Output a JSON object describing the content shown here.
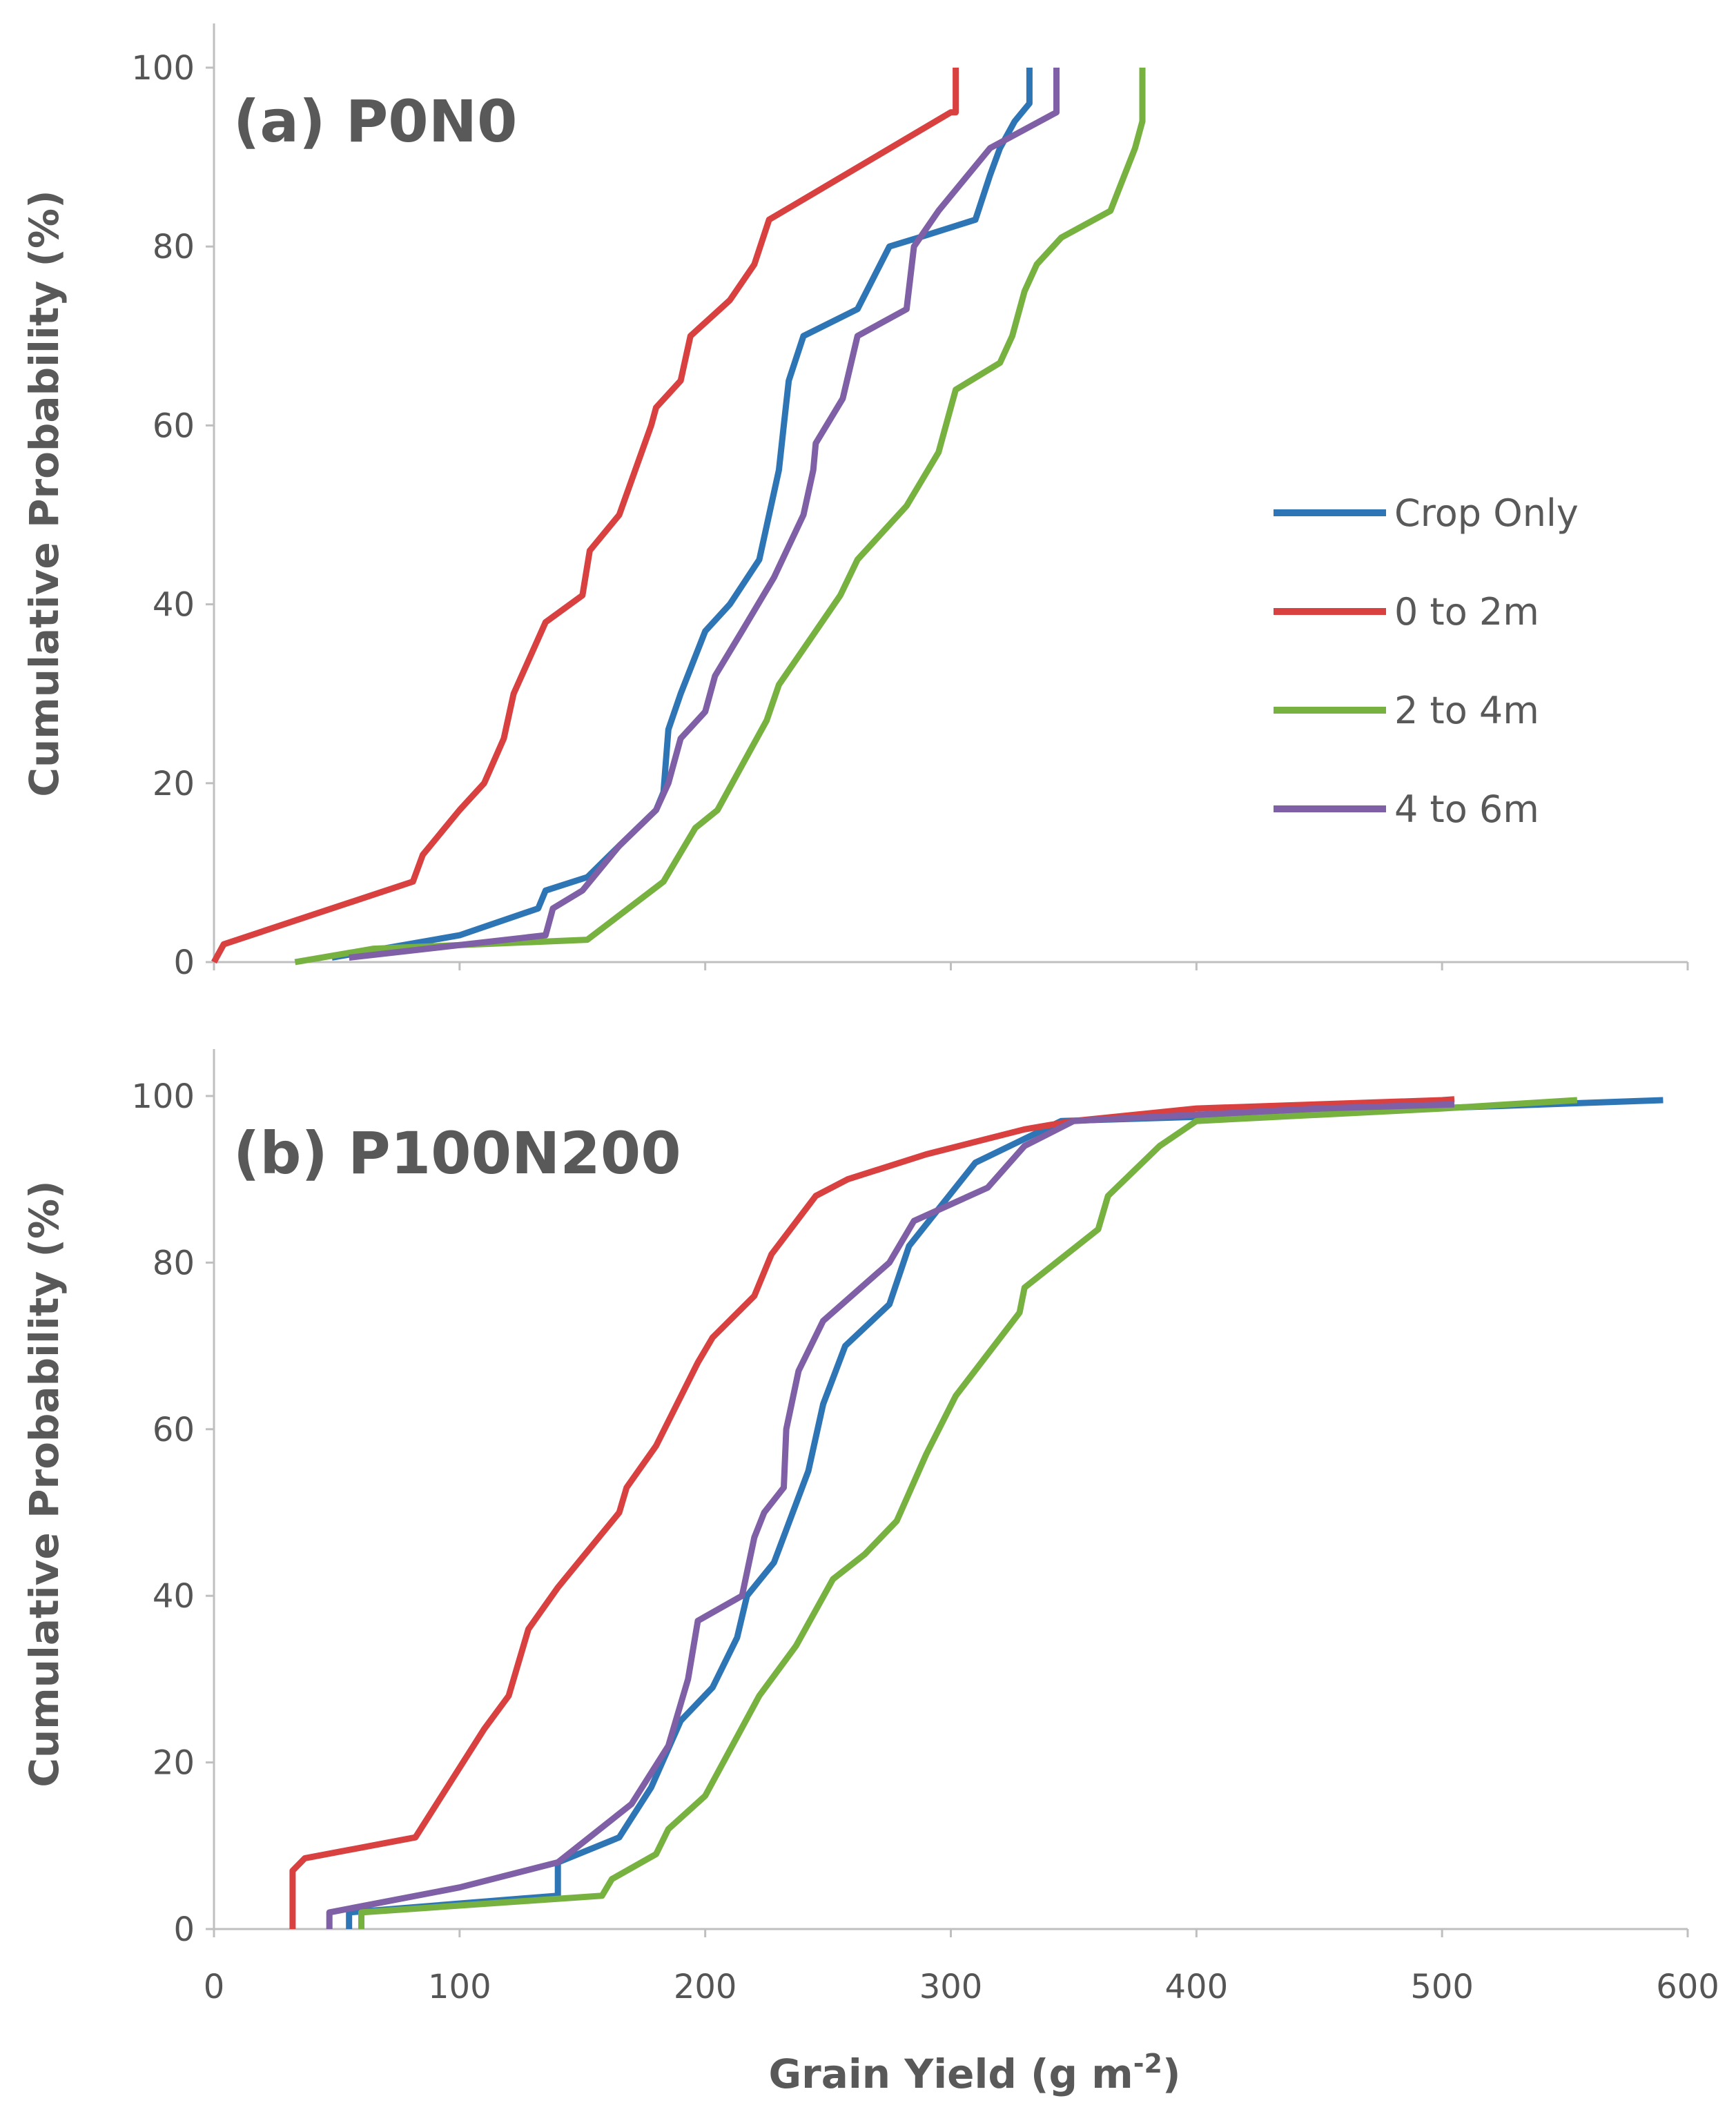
{
  "chart_data": [
    {
      "type": "line",
      "title": "(a) P0N0",
      "xlabel": "Grain Yield (g m-2)",
      "ylabel": "Cumulative Probability (%)",
      "xlim": [
        0,
        600
      ],
      "ylim": [
        0,
        100
      ],
      "x_ticks": [
        "0",
        "100",
        "200",
        "300",
        "400",
        "500",
        "600"
      ],
      "y_ticks": [
        "0",
        "20",
        "40",
        "60",
        "80",
        "100"
      ],
      "legend": {
        "placement": "right",
        "entries": [
          "Crop Only",
          "0 to 2m",
          "2 to 4m",
          "4 to 6m"
        ]
      },
      "series": [
        {
          "name": "Crop Only",
          "color": "#2e75b6",
          "points": [
            [
              48,
              0.5
            ],
            [
              100,
              3
            ],
            [
              132,
              6
            ],
            [
              135,
              8
            ],
            [
              152,
              9.5
            ],
            [
              165,
              13
            ],
            [
              180,
              17
            ],
            [
              183,
              19
            ],
            [
              185,
              26
            ],
            [
              190,
              30
            ],
            [
              200,
              37
            ],
            [
              210,
              40
            ],
            [
              222,
              45
            ],
            [
              226,
              50
            ],
            [
              230,
              55
            ],
            [
              232,
              60
            ],
            [
              234,
              65
            ],
            [
              240,
              70
            ],
            [
              262,
              73
            ],
            [
              275,
              80
            ],
            [
              287,
              81
            ],
            [
              310,
              83
            ],
            [
              316,
              88
            ],
            [
              320,
              91
            ],
            [
              326,
              94
            ],
            [
              332,
              96
            ],
            [
              332,
              100
            ]
          ]
        },
        {
          "name": "0 to 2m",
          "color": "#d94040",
          "points": [
            [
              0,
              0
            ],
            [
              4,
              2
            ],
            [
              81,
              9
            ],
            [
              85,
              12
            ],
            [
              100,
              17
            ],
            [
              110,
              20
            ],
            [
              118,
              25
            ],
            [
              122,
              30
            ],
            [
              135,
              38
            ],
            [
              150,
              41
            ],
            [
              153,
              46
            ],
            [
              165,
              50
            ],
            [
              178,
              60
            ],
            [
              180,
              62
            ],
            [
              190,
              65
            ],
            [
              194,
              70
            ],
            [
              210,
              74
            ],
            [
              220,
              78
            ],
            [
              226,
              83
            ],
            [
              300,
              95
            ],
            [
              302,
              95
            ],
            [
              302,
              100
            ]
          ]
        },
        {
          "name": "2 to 4m",
          "color": "#77b140",
          "points": [
            [
              33,
              0
            ],
            [
              65,
              1.5
            ],
            [
              152,
              2.5
            ],
            [
              183,
              9
            ],
            [
              196,
              15
            ],
            [
              205,
              17
            ],
            [
              215,
              22
            ],
            [
              225,
              27
            ],
            [
              230,
              31
            ],
            [
              240,
              35
            ],
            [
              255,
              41
            ],
            [
              262,
              45
            ],
            [
              282,
              51
            ],
            [
              295,
              57
            ],
            [
              302,
              64
            ],
            [
              320,
              67
            ],
            [
              325,
              70
            ],
            [
              330,
              75
            ],
            [
              335,
              78
            ],
            [
              345,
              81
            ],
            [
              365,
              84
            ],
            [
              375,
              91
            ],
            [
              378,
              94
            ],
            [
              378,
              100
            ]
          ]
        },
        {
          "name": "4 to 6m",
          "color": "#7f5fa5",
          "points": [
            [
              55,
              0.5
            ],
            [
              135,
              3
            ],
            [
              138,
              6
            ],
            [
              150,
              8
            ],
            [
              165,
              13
            ],
            [
              180,
              17
            ],
            [
              185,
              20
            ],
            [
              190,
              25
            ],
            [
              200,
              28
            ],
            [
              204,
              32
            ],
            [
              215,
              37
            ],
            [
              228,
              43
            ],
            [
              240,
              50
            ],
            [
              244,
              55
            ],
            [
              245,
              58
            ],
            [
              256,
              63
            ],
            [
              262,
              70
            ],
            [
              282,
              73
            ],
            [
              285,
              80
            ],
            [
              295,
              84
            ],
            [
              316,
              91
            ],
            [
              343,
              95
            ],
            [
              343,
              100
            ]
          ]
        }
      ]
    },
    {
      "type": "line",
      "title": "(b) P100N200",
      "xlabel": "Grain Yield (g m-2)",
      "ylabel": "Cumulative Probability (%)",
      "xlim": [
        0,
        600
      ],
      "ylim": [
        0,
        100
      ],
      "x_ticks": [
        "0",
        "100",
        "200",
        "300",
        "400",
        "500",
        "600"
      ],
      "y_ticks": [
        "0",
        "20",
        "40",
        "60",
        "80",
        "100"
      ],
      "series": [
        {
          "name": "Crop Only",
          "color": "#2e75b6",
          "points": [
            [
              55,
              0
            ],
            [
              55,
              2
            ],
            [
              140,
              4
            ],
            [
              140,
              8
            ],
            [
              165,
              11
            ],
            [
              178,
              17
            ],
            [
              190,
              25
            ],
            [
              203,
              29
            ],
            [
              213,
              35
            ],
            [
              217,
              40
            ],
            [
              228,
              44
            ],
            [
              242,
              55
            ],
            [
              248,
              63
            ],
            [
              257,
              70
            ],
            [
              275,
              75
            ],
            [
              283,
              82
            ],
            [
              310,
              92
            ],
            [
              345,
              97
            ],
            [
              400,
              97.5
            ],
            [
              590,
              99.5
            ]
          ]
        },
        {
          "name": "0 to 2m",
          "color": "#d94040",
          "points": [
            [
              32,
              0
            ],
            [
              32,
              7
            ],
            [
              37,
              8.5
            ],
            [
              82,
              11
            ],
            [
              110,
              24
            ],
            [
              120,
              28
            ],
            [
              128,
              36
            ],
            [
              140,
              41
            ],
            [
              165,
              50
            ],
            [
              168,
              53
            ],
            [
              180,
              58
            ],
            [
              197,
              68
            ],
            [
              203,
              71
            ],
            [
              220,
              76
            ],
            [
              227,
              81
            ],
            [
              245,
              88
            ],
            [
              258,
              90
            ],
            [
              290,
              93
            ],
            [
              330,
              96
            ],
            [
              350,
              97
            ],
            [
              400,
              98.5
            ],
            [
              500,
              99.5
            ],
            [
              505,
              99.6
            ]
          ]
        },
        {
          "name": "2 to 4m",
          "color": "#77b140",
          "points": [
            [
              60,
              0
            ],
            [
              60,
              2
            ],
            [
              158,
              4
            ],
            [
              162,
              6
            ],
            [
              180,
              9
            ],
            [
              185,
              12
            ],
            [
              200,
              16
            ],
            [
              222,
              28
            ],
            [
              237,
              34
            ],
            [
              252,
              42
            ],
            [
              265,
              45
            ],
            [
              278,
              49
            ],
            [
              290,
              57
            ],
            [
              302,
              64
            ],
            [
              328,
              74
            ],
            [
              330,
              77
            ],
            [
              360,
              84
            ],
            [
              364,
              88
            ],
            [
              385,
              94
            ],
            [
              400,
              97
            ],
            [
              500,
              98.5
            ],
            [
              555,
              99.5
            ]
          ]
        },
        {
          "name": "4 to 6m",
          "color": "#7f5fa5",
          "points": [
            [
              47,
              0
            ],
            [
              47,
              2
            ],
            [
              100,
              5
            ],
            [
              140,
              8
            ],
            [
              170,
              15
            ],
            [
              185,
              22
            ],
            [
              190,
              27
            ],
            [
              193,
              30
            ],
            [
              197,
              37
            ],
            [
              215,
              40
            ],
            [
              220,
              47
            ],
            [
              224,
              50
            ],
            [
              232,
              53
            ],
            [
              233,
              60
            ],
            [
              238,
              67
            ],
            [
              248,
              73
            ],
            [
              275,
              80
            ],
            [
              285,
              85
            ],
            [
              315,
              89
            ],
            [
              330,
              94
            ],
            [
              350,
              97
            ],
            [
              450,
              98.5
            ],
            [
              505,
              99
            ]
          ]
        }
      ]
    }
  ]
}
